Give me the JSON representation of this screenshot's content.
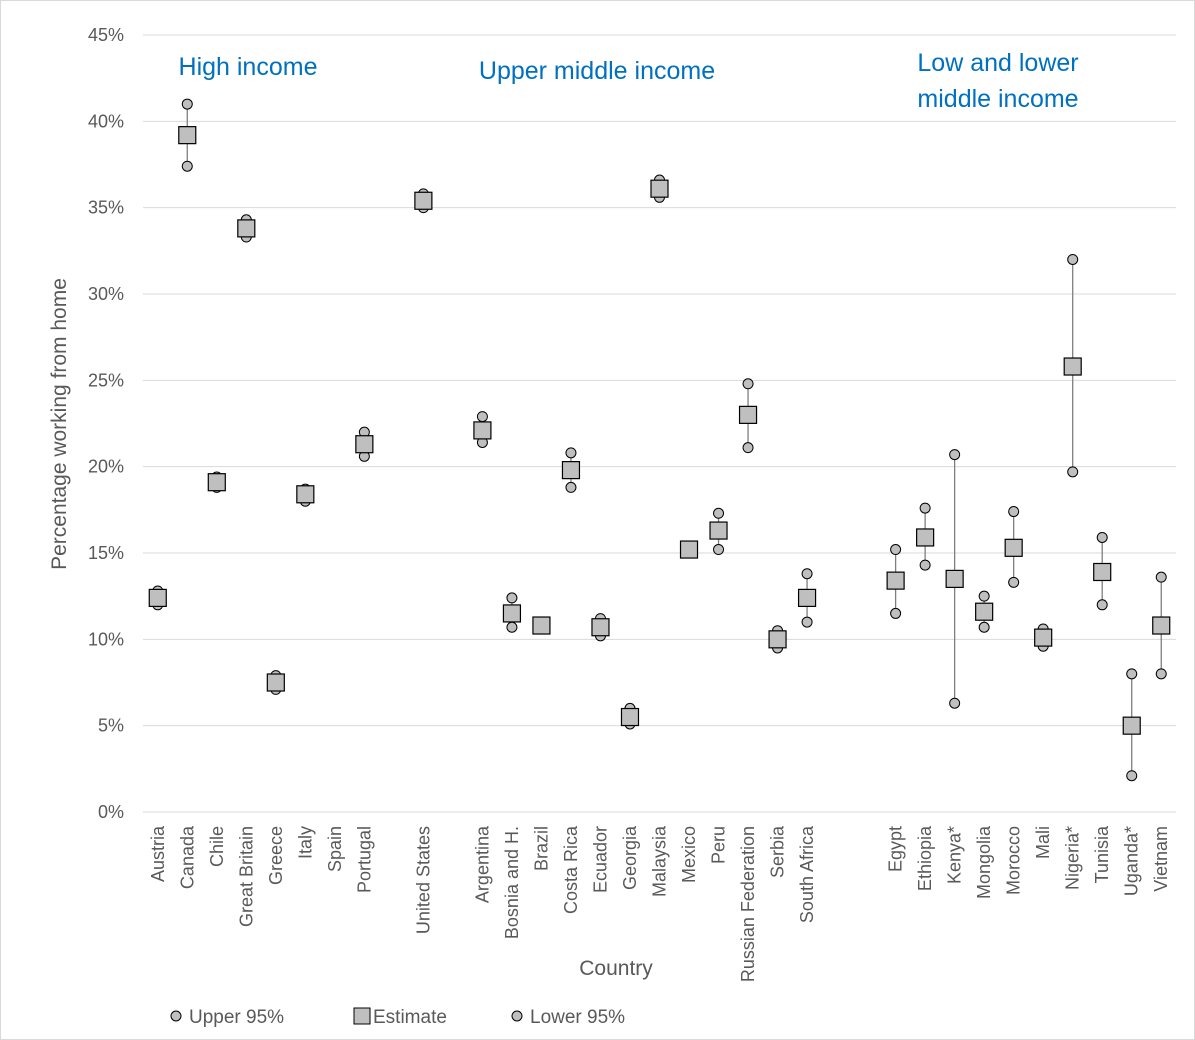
{
  "chart_data": {
    "type": "scatter",
    "xlabel": "Country",
    "ylabel": "Percentage working from home",
    "ylim": [
      0,
      0.45
    ],
    "yticks": [
      "0%",
      "5%",
      "10%",
      "15%",
      "20%",
      "25%",
      "30%",
      "35%",
      "40%",
      "45%"
    ],
    "grid": true,
    "legend_position": "bottom-left",
    "legend": [
      "Upper 95%",
      "Estimate",
      "Lower 95%"
    ],
    "group_labels": [
      {
        "text": "High income"
      },
      {
        "text": "Upper middle income"
      },
      {
        "lines": [
          "Low and lower",
          "middle income"
        ]
      }
    ],
    "colors": {
      "grid": "#d9d9d9",
      "marker_fill": "#bfbfbf",
      "marker_stroke": "#000000",
      "errorbar": "#7f7f7f",
      "group_label": "#0070c0",
      "text": "#595959"
    },
    "categories": [
      "Austria",
      "Canada",
      "Chile",
      "Great Britain",
      "Greece",
      "Italy",
      "Spain",
      "Portugal",
      "",
      "United States",
      "",
      "Argentina",
      "Bosnia and H.",
      "Brazil",
      "Costa Rica",
      "Ecuador",
      "Georgia",
      "Malaysia",
      "Mexico",
      "Peru",
      "Russian Federation",
      "Serbia",
      "South Africa",
      "",
      "",
      "Egypt",
      "Ethiopia",
      "Kenya*",
      "Mongolia",
      "Morocco",
      "Mali",
      "Nigeria*",
      "Tunisia",
      "Uganda*",
      "Vietnam"
    ],
    "series": [
      {
        "name": "Upper 95%",
        "values": [
          0.128,
          0.41,
          0.194,
          0.343,
          0.079,
          0.187,
          null,
          0.22,
          null,
          0.358,
          null,
          0.229,
          0.124,
          0.109,
          0.208,
          0.112,
          0.06,
          0.366,
          0.154,
          0.173,
          0.248,
          0.105,
          0.138,
          null,
          null,
          0.152,
          0.176,
          0.207,
          0.125,
          0.174,
          0.106,
          0.32,
          0.159,
          0.08,
          0.136
        ]
      },
      {
        "name": "Estimate",
        "values": [
          0.124,
          0.392,
          0.191,
          0.338,
          0.075,
          0.184,
          null,
          0.213,
          null,
          0.354,
          null,
          0.221,
          0.115,
          0.108,
          0.198,
          0.107,
          0.055,
          0.361,
          0.152,
          0.163,
          0.23,
          0.1,
          0.124,
          null,
          null,
          0.134,
          0.159,
          0.135,
          0.116,
          0.153,
          0.101,
          0.258,
          0.139,
          0.05,
          0.108
        ]
      },
      {
        "name": "Lower 95%",
        "values": [
          0.12,
          0.374,
          0.188,
          0.333,
          0.071,
          0.18,
          null,
          0.206,
          null,
          0.35,
          null,
          0.214,
          0.107,
          0.107,
          0.188,
          0.102,
          0.051,
          0.356,
          0.15,
          0.152,
          0.211,
          0.095,
          0.11,
          null,
          null,
          0.115,
          0.143,
          0.063,
          0.107,
          0.133,
          0.096,
          0.197,
          0.12,
          0.021,
          0.08
        ]
      }
    ]
  }
}
